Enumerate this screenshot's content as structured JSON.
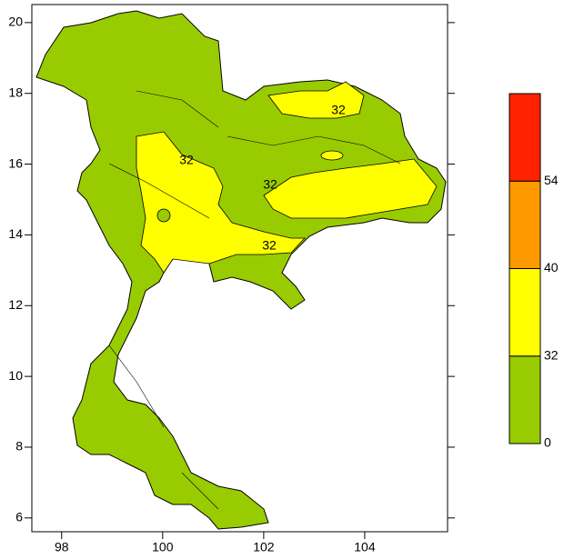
{
  "chart_data": {
    "type": "map",
    "xlim": [
      97.41,
      105.64
    ],
    "ylim": [
      5.61,
      20.51
    ],
    "xticks": [
      98,
      100,
      102,
      104
    ],
    "yticks": [
      6,
      8,
      10,
      12,
      14,
      16,
      18,
      20
    ],
    "contour_labels": [
      "32",
      "32",
      "32",
      "32"
    ],
    "colorbar": {
      "levels": [
        0,
        32,
        40,
        54
      ],
      "colors": [
        "#99cc00",
        "#ffff00",
        "#ff9900",
        "#ff2200"
      ]
    }
  }
}
